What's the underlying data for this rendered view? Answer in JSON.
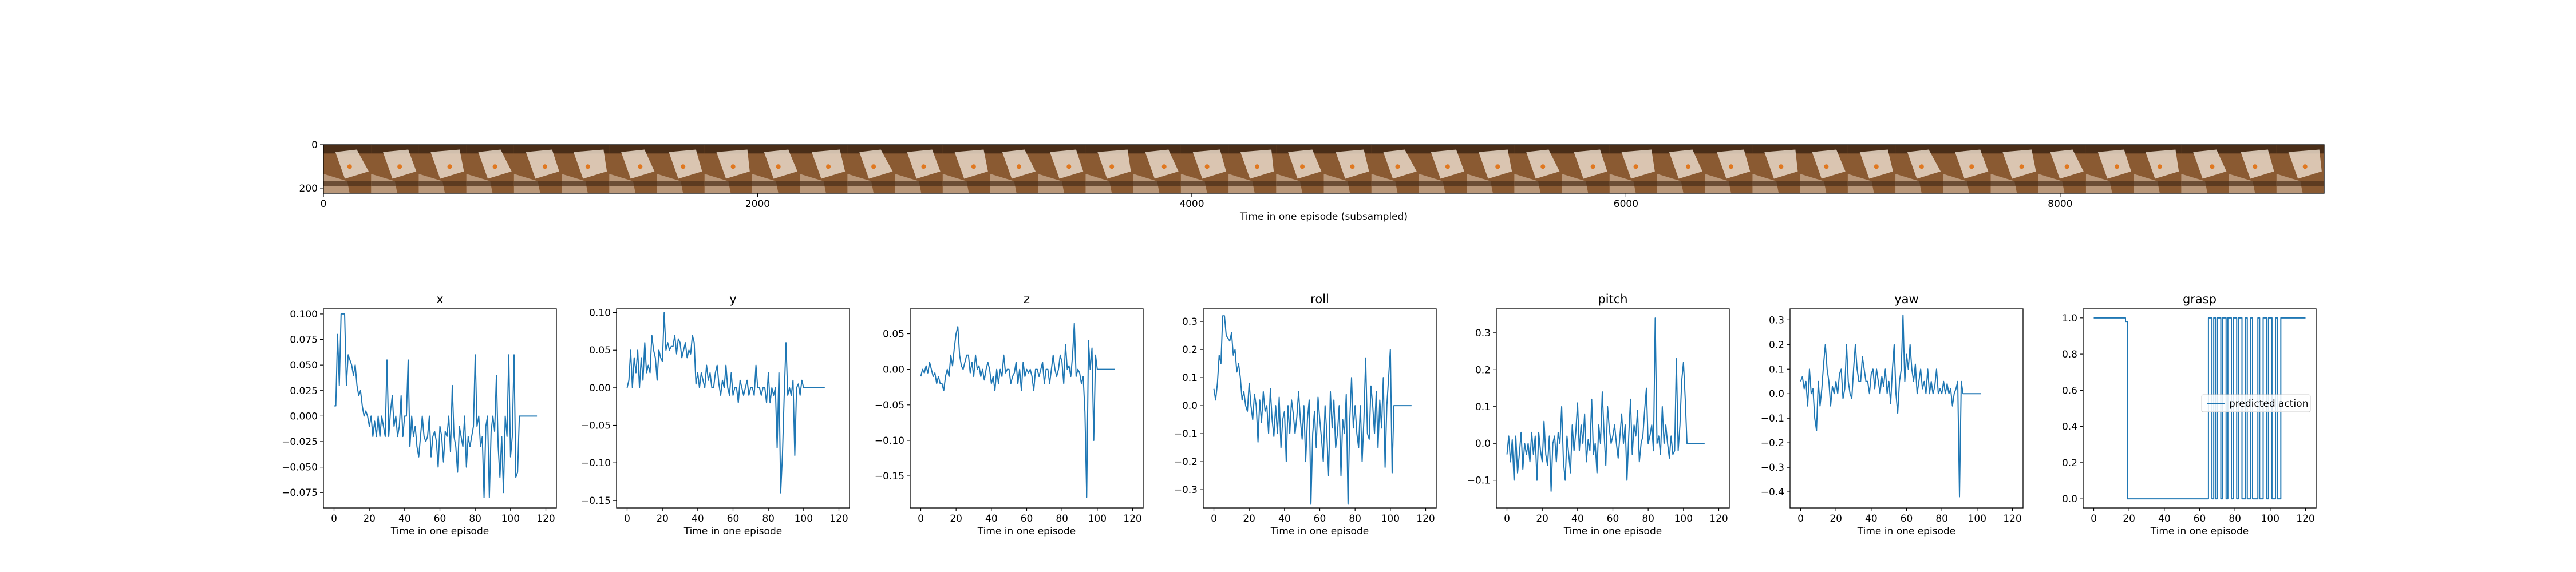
{
  "chart_data": [
    {
      "type": "image-strip",
      "xlabel": "Time in one episode (subsampled)",
      "xlim": [
        0,
        9216
      ],
      "ylim": [
        224,
        0
      ],
      "xticks": [
        0,
        2000,
        4000,
        6000,
        8000
      ],
      "yticks": [
        0,
        200
      ],
      "frames": 42,
      "colors": {
        "wood": "#8a5a32",
        "wood_dark": "#4a2e18",
        "cloth": "#e8d8c8",
        "arm": "#d8c0a8",
        "marker": "#e07820"
      }
    },
    {
      "type": "line",
      "title": "x",
      "xlabel": "Time in one episode",
      "xlim": [
        -6,
        126
      ],
      "ylim": [
        -0.09,
        0.105
      ],
      "xticks": [
        0,
        20,
        40,
        60,
        80,
        100,
        120
      ],
      "yticks": [
        -0.075,
        -0.05,
        -0.025,
        0.0,
        0.025,
        0.05,
        0.075,
        0.1
      ],
      "ytick_labels": [
        "−0.075",
        "−0.050",
        "−0.025",
        "0.000",
        "0.025",
        "0.050",
        "0.075",
        "0.100"
      ],
      "values": [
        0.01,
        0.01,
        0.08,
        0.03,
        0.1,
        0.1,
        0.1,
        0.03,
        0.06,
        0.055,
        0.05,
        0.04,
        0.05,
        0.03,
        0.02,
        0.025,
        0.01,
        0.0,
        0.005,
        0.0,
        -0.01,
        0.0,
        -0.02,
        -0.005,
        -0.02,
        0.0,
        -0.02,
        0.0,
        -0.01,
        -0.02,
        0.055,
        -0.02,
        0.005,
        0.02,
        -0.01,
        0.0,
        -0.02,
        -0.01,
        0.02,
        -0.02,
        0.0,
        0.0,
        0.055,
        -0.03,
        0.0,
        -0.02,
        -0.01,
        -0.03,
        -0.04,
        -0.02,
        0.0,
        -0.02,
        -0.025,
        -0.02,
        0.0,
        -0.04,
        -0.02,
        -0.015,
        -0.025,
        -0.05,
        -0.01,
        -0.02,
        -0.045,
        -0.015,
        -0.02,
        0.0,
        -0.035,
        0.03,
        -0.02,
        -0.03,
        -0.055,
        -0.01,
        -0.02,
        -0.03,
        0.0,
        -0.05,
        -0.02,
        -0.03,
        -0.02,
        -0.01,
        0.06,
        -0.01,
        0.0,
        -0.03,
        -0.02,
        -0.08,
        -0.01,
        0.0,
        -0.08,
        -0.015,
        0.0,
        -0.015,
        0.04,
        -0.03,
        -0.06,
        -0.02,
        -0.075,
        0.0,
        -0.02,
        0.06,
        -0.04,
        -0.02,
        0.06,
        -0.06,
        -0.055,
        0.0,
        0.0,
        0.0,
        0.0,
        0.0,
        0.0,
        0.0,
        0.0,
        0.0,
        0.0,
        0.0
      ]
    },
    {
      "type": "line",
      "title": "y",
      "xlabel": "Time in one episode",
      "xlim": [
        -6,
        126
      ],
      "ylim": [
        -0.16,
        0.105
      ],
      "xticks": [
        0,
        20,
        40,
        60,
        80,
        100,
        120
      ],
      "yticks": [
        -0.15,
        -0.1,
        -0.05,
        0.0,
        0.05,
        0.1
      ],
      "ytick_labels": [
        "−0.15",
        "−0.10",
        "−0.05",
        "0.00",
        "0.05",
        "0.10"
      ],
      "values": [
        0.0,
        0.01,
        0.05,
        0.0,
        0.04,
        0.02,
        0.05,
        0.0,
        0.04,
        0.01,
        0.06,
        0.02,
        0.03,
        0.02,
        0.07,
        0.05,
        0.04,
        0.01,
        0.05,
        0.04,
        0.035,
        0.1,
        0.05,
        0.06,
        0.05,
        0.055,
        0.055,
        0.07,
        0.045,
        0.065,
        0.06,
        0.04,
        0.05,
        0.06,
        0.04,
        0.05,
        0.045,
        0.07,
        0.06,
        0.005,
        0.02,
        0.0,
        0.02,
        0.01,
        0.0,
        0.03,
        0.01,
        0.02,
        0.0,
        0.0,
        0.02,
        0.03,
        0.005,
        -0.01,
        0.01,
        0.0,
        0.03,
        0.0,
        -0.01,
        0.02,
        -0.01,
        0.0,
        0.0,
        -0.02,
        0.01,
        0.0,
        -0.01,
        0.0,
        0.01,
        -0.01,
        0.0,
        0.0,
        -0.01,
        0.03,
        0.0,
        0.0,
        -0.01,
        0.0,
        0.0,
        -0.02,
        0.02,
        -0.02,
        0.0,
        -0.01,
        0.0,
        -0.08,
        0.02,
        -0.14,
        -0.09,
        -0.01,
        0.06,
        -0.01,
        0.0,
        -0.01,
        0.01,
        -0.09,
        0.0,
        0.005,
        -0.01,
        0.01,
        0.0,
        0.0,
        0.0,
        0.0,
        0.0,
        0.0,
        0.0,
        0.0,
        0.0,
        0.0,
        0.0,
        0.0,
        0.0
      ]
    },
    {
      "type": "line",
      "title": "z",
      "xlabel": "Time in one episode",
      "xlim": [
        -6,
        126
      ],
      "ylim": [
        -0.195,
        0.085
      ],
      "xticks": [
        0,
        20,
        40,
        60,
        80,
        100,
        120
      ],
      "yticks": [
        -0.15,
        -0.1,
        -0.05,
        0.0,
        0.05
      ],
      "ytick_labels": [
        "−0.15",
        "−0.10",
        "−0.05",
        "0.00",
        "0.05"
      ],
      "values": [
        -0.01,
        0.0,
        -0.005,
        0.005,
        -0.005,
        0.01,
        0.0,
        -0.01,
        -0.005,
        -0.02,
        -0.01,
        -0.02,
        -0.02,
        -0.03,
        -0.01,
        0.0,
        -0.01,
        0.02,
        0.005,
        0.03,
        0.05,
        0.06,
        0.02,
        0.005,
        0.0,
        0.01,
        0.02,
        0.02,
        -0.005,
        0.01,
        -0.01,
        0.02,
        0.0,
        0.005,
        -0.01,
        0.0,
        -0.015,
        0.0,
        0.01,
        0.0,
        -0.02,
        -0.01,
        -0.03,
        0.0,
        -0.02,
        0.0,
        -0.01,
        0.02,
        -0.005,
        0.0,
        0.0,
        -0.02,
        -0.01,
        -0.005,
        0.01,
        -0.02,
        0.0,
        -0.03,
        0.01,
        -0.01,
        0.0,
        -0.005,
        0.0,
        -0.01,
        -0.03,
        0.0,
        0.0,
        -0.01,
        0.0,
        0.01,
        -0.02,
        0.0,
        0.0,
        -0.02,
        0.0,
        0.02,
        0.0,
        -0.01,
        0.0,
        0.02,
        0.01,
        -0.02,
        0.035,
        0.0,
        0.005,
        -0.01,
        0.02,
        0.065,
        -0.01,
        0.0,
        -0.005,
        -0.02,
        -0.01,
        -0.06,
        -0.18,
        0.04,
        0.0,
        0.03,
        -0.1,
        0.02,
        0.0,
        0.0,
        0.0,
        0.0,
        0.0,
        0.0,
        0.0,
        0.0,
        0.0,
        0.0,
        0.0
      ]
    },
    {
      "type": "line",
      "title": "roll",
      "xlabel": "Time in one episode",
      "xlim": [
        -6,
        126
      ],
      "ylim": [
        -0.365,
        0.345
      ],
      "xticks": [
        0,
        20,
        40,
        60,
        80,
        100,
        120
      ],
      "yticks": [
        -0.3,
        -0.2,
        -0.1,
        0.0,
        0.1,
        0.2,
        0.3
      ],
      "ytick_labels": [
        "−0.3",
        "−0.2",
        "−0.1",
        "0.0",
        "0.1",
        "0.2",
        "0.3"
      ],
      "values": [
        0.06,
        0.02,
        0.08,
        0.18,
        0.15,
        0.32,
        0.32,
        0.25,
        0.24,
        0.23,
        0.26,
        0.18,
        0.2,
        0.12,
        0.15,
        0.1,
        0.02,
        0.05,
        0.0,
        -0.02,
        0.08,
        0.0,
        -0.05,
        0.04,
        0.0,
        -0.13,
        0.02,
        -0.06,
        0.05,
        -0.02,
        0.0,
        -0.1,
        0.06,
        -0.05,
        -0.11,
        0.0,
        -0.1,
        0.03,
        -0.15,
        -0.05,
        -0.02,
        -0.2,
        0.0,
        -0.1,
        0.02,
        -0.03,
        -0.1,
        -0.04,
        0.05,
        -0.05,
        -0.12,
        0.0,
        -0.2,
        -0.05,
        0.02,
        -0.35,
        -0.1,
        -0.02,
        -0.15,
        0.03,
        -0.05,
        -0.12,
        -0.2,
        0.0,
        -0.1,
        -0.25,
        0.05,
        -0.08,
        0.02,
        -0.15,
        -0.1,
        0.0,
        -0.25,
        -0.05,
        -0.1,
        0.04,
        -0.35,
        -0.05,
        0.1,
        -0.08,
        0.0,
        -0.1,
        -0.15,
        0.0,
        -0.2,
        -0.05,
        0.17,
        -0.1,
        -0.12,
        0.07,
        0.0,
        -0.1,
        0.05,
        -0.15,
        0.02,
        -0.08,
        0.1,
        -0.22,
        0.0,
        0.1,
        0.2,
        -0.24,
        0.0,
        0.0,
        0.0,
        0.0,
        0.0,
        0.0,
        0.0,
        0.0,
        0.0,
        0.0,
        0.0
      ]
    },
    {
      "type": "line",
      "title": "pitch",
      "xlabel": "Time in one episode",
      "xlim": [
        -6,
        126
      ],
      "ylim": [
        -0.175,
        0.365
      ],
      "xticks": [
        0,
        20,
        40,
        60,
        80,
        100,
        120
      ],
      "yticks": [
        -0.1,
        0.0,
        0.1,
        0.2,
        0.3
      ],
      "ytick_labels": [
        "−0.1",
        "0.0",
        "0.1",
        "0.2",
        "0.3"
      ],
      "values": [
        -0.03,
        0.02,
        -0.05,
        0.01,
        -0.1,
        0.02,
        -0.08,
        -0.03,
        0.03,
        -0.07,
        0.0,
        -0.03,
        0.0,
        -0.05,
        0.03,
        -0.03,
        0.02,
        -0.1,
        0.03,
        -0.02,
        -0.05,
        0.06,
        -0.03,
        -0.06,
        0.02,
        -0.13,
        0.0,
        0.02,
        -0.05,
        0.03,
        0.0,
        0.1,
        -0.05,
        -0.1,
        0.02,
        -0.03,
        -0.08,
        0.05,
        -0.02,
        0.03,
        0.11,
        -0.02,
        0.05,
        0.0,
        0.08,
        -0.05,
        0.01,
        -0.02,
        0.12,
        -0.03,
        0.0,
        -0.08,
        0.05,
        0.0,
        0.14,
        0.03,
        -0.06,
        0.1,
        0.04,
        0.0,
        0.02,
        0.05,
        0.0,
        -0.04,
        0.02,
        0.08,
        0.0,
        0.05,
        -0.1,
        0.02,
        0.12,
        -0.03,
        0.05,
        0.02,
        0.09,
        -0.05,
        0.0,
        0.02,
        0.09,
        0.15,
        0.0,
        0.02,
        0.05,
        -0.02,
        0.34,
        0.0,
        0.02,
        -0.03,
        0.1,
        0.0,
        0.05,
        0.0,
        -0.04,
        0.02,
        -0.03,
        -0.02,
        0.23,
        -0.02,
        0.05,
        0.17,
        0.22,
        0.12,
        0.0,
        0.0,
        0.0,
        0.0,
        0.0,
        0.0,
        0.0,
        0.0,
        0.0,
        0.0,
        0.0
      ]
    },
    {
      "type": "line",
      "title": "yaw",
      "xlabel": "Time in one episode",
      "xlim": [
        -6,
        126
      ],
      "ylim": [
        -0.465,
        0.345
      ],
      "xticks": [
        0,
        20,
        40,
        60,
        80,
        100,
        120
      ],
      "yticks": [
        -0.4,
        -0.3,
        -0.2,
        -0.1,
        0.0,
        0.1,
        0.2,
        0.3
      ],
      "ytick_labels": [
        "−0.4",
        "−0.3",
        "−0.2",
        "−0.1",
        "0.0",
        "0.1",
        "0.2",
        "0.3"
      ],
      "values": [
        0.05,
        0.07,
        0.02,
        0.05,
        -0.05,
        0.1,
        0.0,
        0.02,
        -0.1,
        -0.15,
        0.05,
        -0.05,
        0.02,
        0.12,
        0.2,
        0.1,
        0.05,
        -0.05,
        0.03,
        0.0,
        0.05,
        0.0,
        0.08,
        0.1,
        -0.02,
        0.02,
        0.2,
        0.05,
        0.0,
        -0.02,
        0.1,
        0.2,
        0.1,
        0.05,
        0.05,
        0.15,
        0.1,
        0.05,
        0.05,
        0.0,
        0.08,
        0.1,
        0.02,
        0.1,
        0.05,
        0.0,
        0.07,
        0.03,
        0.1,
        0.0,
        0.05,
        -0.04,
        0.1,
        0.2,
        0.0,
        -0.08,
        0.05,
        0.1,
        0.32,
        0.05,
        0.16,
        0.1,
        0.2,
        0.1,
        0.05,
        0.12,
        0.0,
        0.05,
        0.1,
        0.02,
        0.05,
        0.0,
        0.1,
        0.0,
        0.05,
        0.0,
        0.03,
        0.1,
        0.0,
        0.02,
        0.0,
        0.05,
        0.0,
        0.04,
        0.0,
        0.02,
        -0.05,
        0.0,
        0.02,
        0.05,
        -0.42,
        0.05,
        0.0,
        0.0,
        0.0,
        0.0,
        0.0,
        0.0,
        0.0,
        0.0,
        0.0,
        0.0,
        0.0
      ]
    },
    {
      "type": "line",
      "title": "grasp",
      "xlabel": "Time in one episode",
      "xlim": [
        -6,
        126
      ],
      "ylim": [
        -0.05,
        1.05
      ],
      "xticks": [
        0,
        20,
        40,
        60,
        80,
        100,
        120
      ],
      "yticks": [
        0.0,
        0.2,
        0.4,
        0.6,
        0.8,
        1.0
      ],
      "ytick_labels": [
        "0.0",
        "0.2",
        "0.4",
        "0.6",
        "0.8",
        "1.0"
      ],
      "x": [
        0,
        18,
        18,
        19,
        19,
        65,
        65,
        67,
        67,
        68,
        68,
        69,
        69,
        70,
        70,
        72,
        72,
        73,
        73,
        75,
        75,
        76,
        76,
        78,
        78,
        79,
        79,
        81,
        81,
        82,
        82,
        84,
        84,
        86,
        86,
        87,
        87,
        89,
        89,
        90,
        90,
        93,
        93,
        94,
        94,
        96,
        96,
        98,
        98,
        99,
        99,
        101,
        101,
        103,
        103,
        104,
        104,
        106,
        106,
        107,
        107,
        120
      ],
      "values": [
        1,
        1,
        0.98,
        0.98,
        0,
        0,
        1,
        1,
        0,
        0,
        1,
        1,
        0,
        0,
        1,
        1,
        0,
        0,
        1,
        1,
        0,
        0,
        1,
        1,
        0,
        0,
        1,
        1,
        0,
        0,
        1,
        1,
        0,
        0,
        1,
        1,
        0,
        0,
        1,
        1,
        0,
        0,
        1,
        1,
        0,
        0,
        1,
        1,
        0,
        0,
        1,
        1,
        0,
        0,
        1,
        1,
        0,
        0,
        1,
        1,
        1,
        1
      ],
      "legend": "predicted action",
      "legend_loc": "center right"
    }
  ],
  "colors": {
    "line": "#1f77b4",
    "axes": "#000000"
  }
}
